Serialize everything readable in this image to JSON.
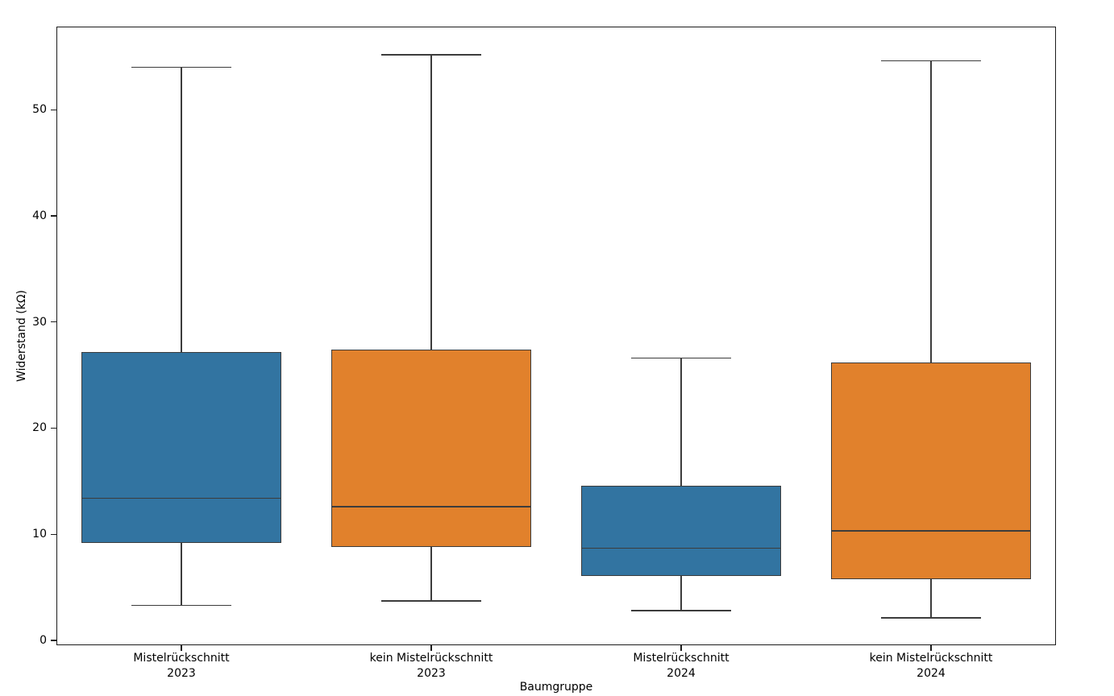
{
  "chart_data": {
    "type": "box",
    "title": "",
    "xlabel": "Baumgruppe",
    "ylabel": "Widerstand (kΩ)",
    "ylim": [
      -0.46,
      57.84
    ],
    "yticks": [
      0,
      10,
      20,
      30,
      40,
      50
    ],
    "grid": false,
    "legend": "none",
    "colors": {
      "blue_box": "#3274a1",
      "orange_box": "#e1812c",
      "box_edge": "#3c3c3c",
      "axis_spine": "#1c1c1c",
      "text": "#000000"
    },
    "categories": [
      {
        "line1": "Mistelrückschnitt",
        "line2": "2023"
      },
      {
        "line1": "kein Mistelrückschnitt",
        "line2": "2023"
      },
      {
        "line1": "Mistelrückschnitt",
        "line2": "2024"
      },
      {
        "line1": "kein Mistelrückschnitt",
        "line2": "2024"
      }
    ],
    "boxes": [
      {
        "label": "Mistelrückschnitt 2023",
        "color": "#3274a1",
        "whisker_low": 3.3,
        "q1": 9.2,
        "median": 13.4,
        "q3": 27.2,
        "whisker_high": 54.0
      },
      {
        "label": "kein Mistelrückschnitt 2023",
        "color": "#e1812c",
        "whisker_low": 3.7,
        "q1": 8.8,
        "median": 12.6,
        "q3": 27.4,
        "whisker_high": 55.2
      },
      {
        "label": "Mistelrückschnitt 2024",
        "color": "#3274a1",
        "whisker_low": 2.8,
        "q1": 6.1,
        "median": 8.7,
        "q3": 14.6,
        "whisker_high": 26.6
      },
      {
        "label": "kein Mistelrückschnitt 2024",
        "color": "#e1812c",
        "whisker_low": 2.1,
        "q1": 5.8,
        "median": 10.3,
        "q3": 26.2,
        "whisker_high": 54.6
      }
    ]
  }
}
